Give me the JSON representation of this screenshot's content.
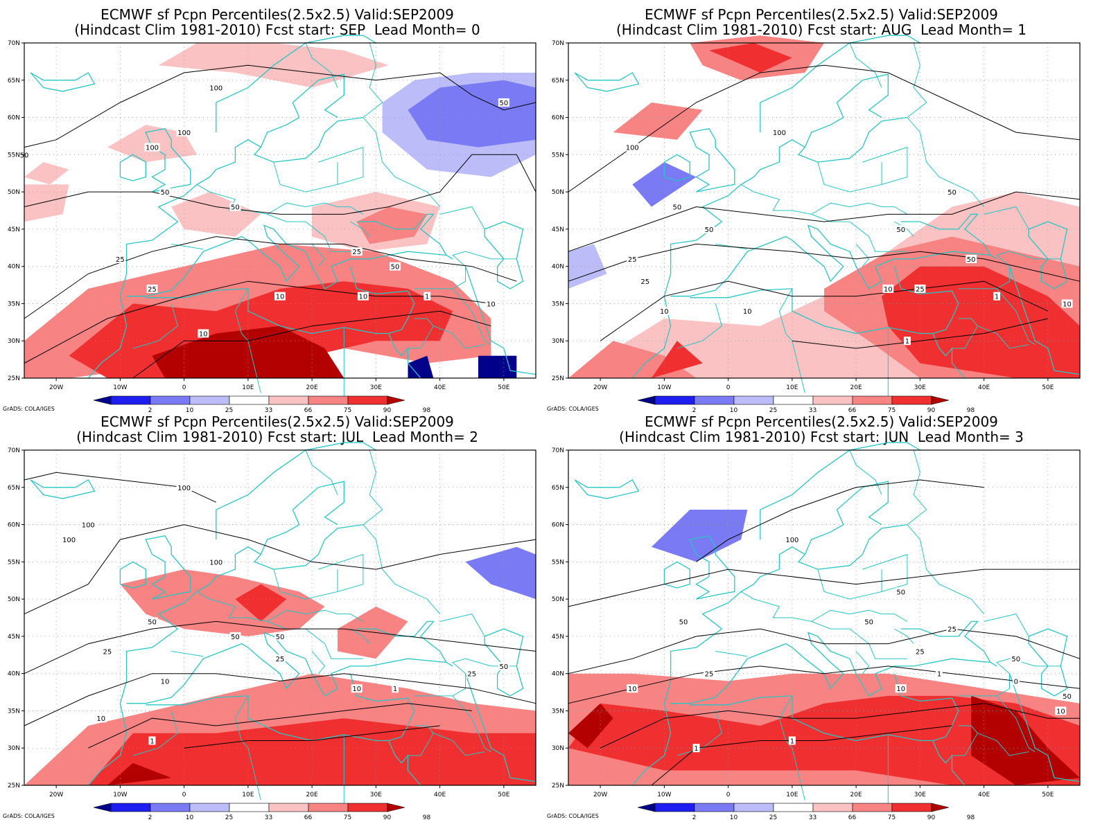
{
  "credit": "GrADS: COLA/IGES",
  "map_axes": {
    "lon_ticks": [
      "20W",
      "10W",
      "0",
      "10E",
      "20E",
      "30E",
      "40E",
      "50E"
    ],
    "lat_ticks": [
      "70N",
      "65N",
      "60N",
      "55N",
      "50N",
      "45N",
      "40N",
      "35N",
      "30N",
      "25N"
    ],
    "lon_range": [
      -25,
      55
    ],
    "lat_range": [
      25,
      70
    ]
  },
  "colorbar": {
    "ticks": [
      "2",
      "10",
      "25",
      "33",
      "66",
      "75",
      "90",
      "98"
    ],
    "colors": [
      "#00008b",
      "#1e1ef0",
      "#7a7af5",
      "#bcbcf8",
      "#ffffff",
      "#fac2c2",
      "#f78383",
      "#f03030",
      "#b30000"
    ]
  },
  "colors": {
    "coastline": "#26c6c6",
    "contour": "#000000",
    "grid": "#999999"
  },
  "panels": [
    {
      "title_line1": "ECMWF sf Pcpn Percentiles(2.5x2.5) Valid:SEP2009",
      "title_line2": "(Hindcast Clim 1981-2010) Fcst start: SEP  Lead Month= 0",
      "contour_labels": [
        "100",
        "100",
        "100",
        "50",
        "50",
        "50",
        "50",
        "25",
        "25",
        "25",
        "10",
        "10",
        "10",
        "10",
        "1",
        "50"
      ]
    },
    {
      "title_line1": "ECMWF sf Pcpn Percentiles(2.5x2.5) Valid:SEP2009",
      "title_line2": "(Hindcast Clim 1981-2010) Fcst start: AUG  Lead Month= 1",
      "contour_labels": [
        "100",
        "100",
        "50",
        "50",
        "50",
        "50",
        "50",
        "25",
        "25",
        "25",
        "10",
        "10",
        "10",
        "10",
        "1",
        "1"
      ]
    },
    {
      "title_line1": "ECMWF sf Pcpn Percentiles(2.5x2.5) Valid:SEP2009",
      "title_line2": "(Hindcast Clim 1981-2010) Fcst start: JUL  Lead Month= 2",
      "contour_labels": [
        "100",
        "100",
        "100",
        "100",
        "50",
        "50",
        "50",
        "50",
        "25",
        "25",
        "25",
        "10",
        "10",
        "10",
        "1",
        "1"
      ]
    },
    {
      "title_line1": "ECMWF sf Pcpn Percentiles(2.5x2.5) Valid:SEP2009",
      "title_line2": "(Hindcast Clim 1981-2010) Fcst start: JUN  Lead Month= 3",
      "contour_labels": [
        "100",
        "50",
        "50",
        "50",
        "50",
        "25",
        "25",
        "25",
        "10",
        "10",
        "10",
        "1",
        "1",
        "1",
        "0",
        "50"
      ]
    }
  ]
}
